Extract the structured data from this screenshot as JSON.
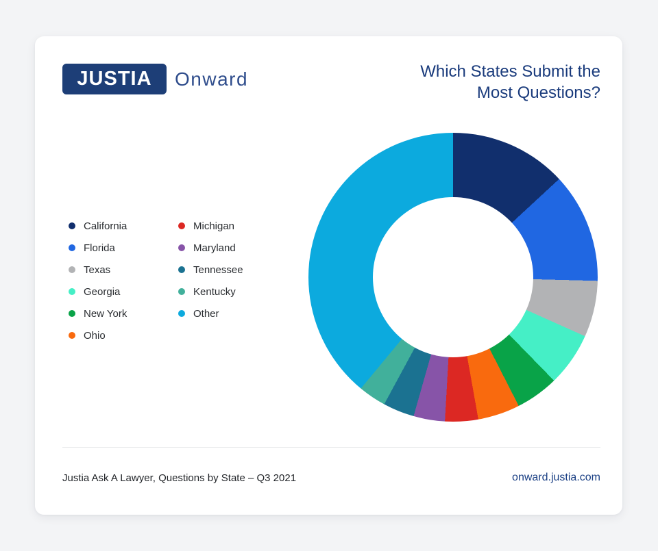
{
  "page": {
    "background_color": "#f3f4f6",
    "card_background": "#ffffff"
  },
  "header": {
    "logo_text": "JUSTIA",
    "brand_suffix": "Onward",
    "title_line1": "Which States Submit the",
    "title_line2": "Most Questions?"
  },
  "chart_data": {
    "type": "pie",
    "subtype": "donut",
    "title": "Which States Submit the Most Questions?",
    "categories": [
      "California",
      "Florida",
      "Texas",
      "Georgia",
      "New York",
      "Ohio",
      "Michigan",
      "Maryland",
      "Tennessee",
      "Kentucky",
      "Other"
    ],
    "values_percent": [
      13.1,
      12.3,
      6.3,
      6.0,
      4.8,
      4.7,
      3.7,
      3.5,
      3.5,
      3.1,
      39.0
    ],
    "colors": [
      "#112f6d",
      "#2067e2",
      "#b2b3b5",
      "#45efc6",
      "#09a348",
      "#f96a0e",
      "#dc2823",
      "#8754a8",
      "#1b7291",
      "#41b09b",
      "#0caade"
    ],
    "start_angle_deg": 0,
    "direction": "clockwise",
    "inner_radius_ratio": 0.55,
    "legend_position": "left",
    "data_labels": "none"
  },
  "footer": {
    "source": "Justia Ask A Lawyer, Questions by State – Q3 2021",
    "link": "onward.justia.com"
  },
  "brand_colors": {
    "logo_background": "#1d3e77",
    "title_text": "#1a3b7c",
    "onward_text": "#2f4d8c",
    "link_text": "#1c4185"
  }
}
